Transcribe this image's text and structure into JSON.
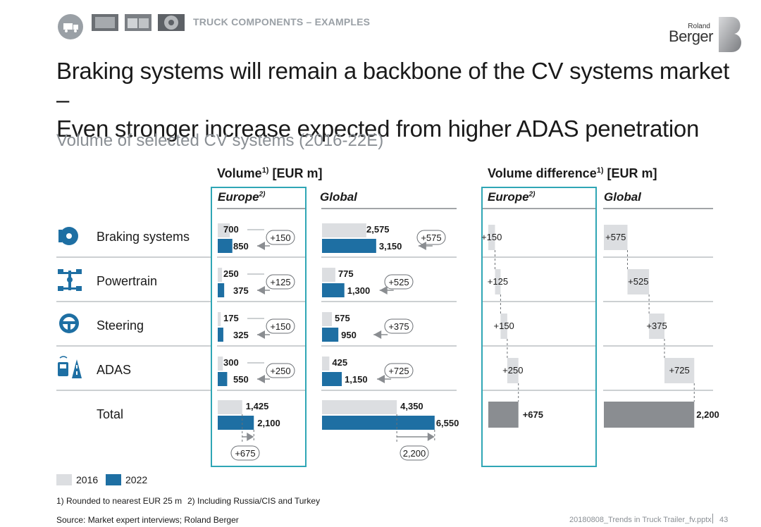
{
  "header": {
    "section_label": "TRUCK COMPONENTS – EXAMPLES",
    "logo_line1": "Roland",
    "logo_line2": "Berger"
  },
  "title_line1": "Braking systems will remain a backbone of the CV systems market –",
  "title_line2": "Even stronger increase expected from higher ADAS penetration",
  "subtitle": "Volume of selected CV systems (2016-22E)",
  "columns": {
    "volume_head": "Volume",
    "volume_sup": "1)",
    "volume_unit": " [EUR m]",
    "diff_head": "Volume difference",
    "diff_sup": "1)",
    "diff_unit": " [EUR m]",
    "europe": "Europe",
    "europe_sup": "2)",
    "global": "Global"
  },
  "rows": [
    "Braking systems",
    "Powertrain",
    "Steering",
    "ADAS",
    "Total"
  ],
  "legend": {
    "y2016": "2016",
    "y2022": "2022"
  },
  "footnotes": {
    "note1": "1) Rounded to nearest EUR 25 m",
    "note2": "2) Including Russia/CIS and Turkey",
    "source": "Source: Market expert interviews; Roland Berger",
    "file": "20180808_Trends in Truck Trailer_fv.pptx",
    "page": "43"
  },
  "colors": {
    "c2016": "#dcdee1",
    "c2022": "#1e6fa3",
    "waterfall": "#8a8d91",
    "highlight": "#2fa6b5",
    "arrow": "#8a8d91"
  },
  "chart_data": {
    "type": "bar",
    "title": "Volume of selected CV systems (2016-22E)",
    "unit": "EUR m",
    "categories": [
      "Braking systems",
      "Powertrain",
      "Steering",
      "ADAS",
      "Total"
    ],
    "europe": {
      "v2016": [
        700,
        250,
        175,
        300,
        1425
      ],
      "v2022": [
        850,
        375,
        325,
        550,
        2100
      ],
      "v2016_labels": [
        "700",
        "250",
        "175",
        "300",
        "1,425"
      ],
      "v2022_labels": [
        "850",
        "375",
        "325",
        "550",
        "2,100"
      ],
      "diff": [
        150,
        125,
        150,
        250,
        675
      ],
      "diff_labels": [
        "+150",
        "+125",
        "+150",
        "+250",
        "+675"
      ]
    },
    "global": {
      "v2016": [
        2575,
        775,
        575,
        425,
        4350
      ],
      "v2022": [
        3150,
        1300,
        950,
        1150,
        6550
      ],
      "v2016_labels": [
        "2,575",
        "775",
        "575",
        "425",
        "4,350"
      ],
      "v2022_labels": [
        "3,150",
        "1,300",
        "950",
        "1,150",
        "6,550"
      ],
      "diff": [
        575,
        525,
        375,
        725,
        2200
      ],
      "diff_labels": [
        "+575",
        "+525",
        "+375",
        "+725",
        "2,200"
      ]
    },
    "legend": [
      "2016",
      "2022"
    ]
  }
}
